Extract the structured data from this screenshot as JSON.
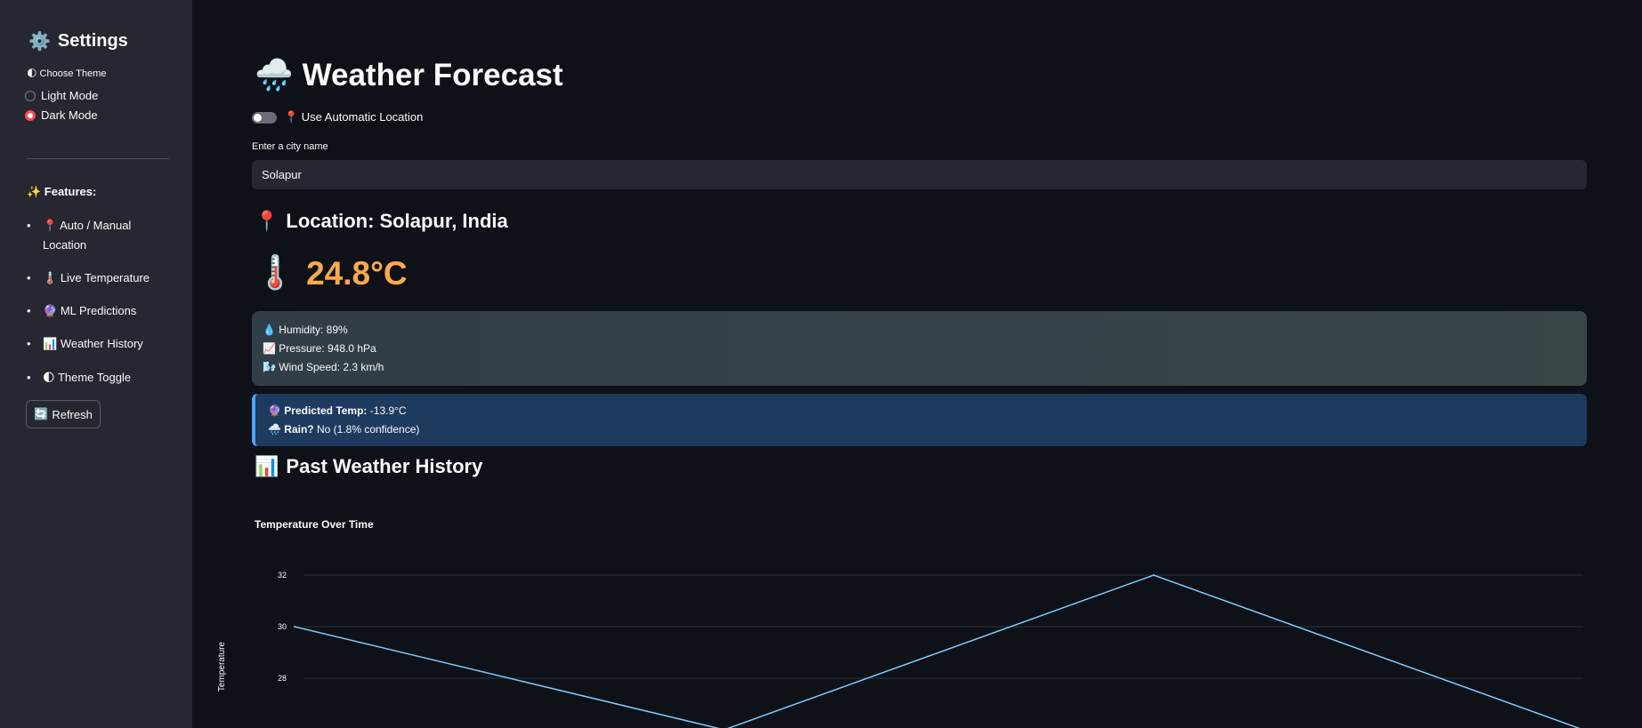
{
  "sidebar": {
    "title": "Settings",
    "title_icon": "gear-icon",
    "theme_label": "🌓 Choose Theme",
    "theme_options": [
      {
        "label": "Light Mode",
        "selected": false
      },
      {
        "label": "Dark Mode",
        "selected": true
      }
    ],
    "features_heading": "✨ Features:",
    "features": [
      {
        "icon": "📍",
        "label": "Auto / Manual Location"
      },
      {
        "icon": "🌡️",
        "label": "Live Temperature"
      },
      {
        "icon": "🔮",
        "label": "ML Predictions"
      },
      {
        "icon": "📊",
        "label": "Weather History"
      },
      {
        "icon": "🌓",
        "label": "Theme Toggle"
      }
    ],
    "refresh_label": "Refresh",
    "refresh_icon": "🔄"
  },
  "main": {
    "title": "Weather Forecast",
    "title_icon": "🌧️",
    "auto_location_label": "📍 Use Automatic Location",
    "auto_location_on": false,
    "city_label": "Enter a city name",
    "city_value": "Solapur",
    "location_text": "Location: Solapur, India",
    "location_icon": "📍",
    "temperature": "24.8°C",
    "temperature_icon": "🌡️",
    "stats": {
      "humidity": "Humidity: 89%",
      "humidity_icon": "💧",
      "pressure": "Pressure: 948.0 hPa",
      "pressure_icon": "📈",
      "wind": "Wind Speed: 2.3 km/h",
      "wind_icon": "🌬️"
    },
    "prediction": {
      "temp_label": "Predicted Temp:",
      "temp_value": " -13.9°C",
      "temp_icon": "🔮",
      "rain_label": "Rain?",
      "rain_value": " No (1.8% confidence)",
      "rain_icon": "🌧️"
    },
    "history_title": "Past Weather History",
    "history_icon": "📊"
  },
  "chart_data": {
    "type": "line",
    "title": "Temperature Over Time",
    "ylabel": "Temperature",
    "xlabel": "",
    "y_ticks": [
      28,
      30,
      32
    ],
    "ylim": [
      26,
      32
    ],
    "x": [
      0,
      1,
      2,
      3
    ],
    "values": [
      30,
      26,
      32,
      26
    ],
    "line_color": "#83c9ff",
    "grid": true
  }
}
